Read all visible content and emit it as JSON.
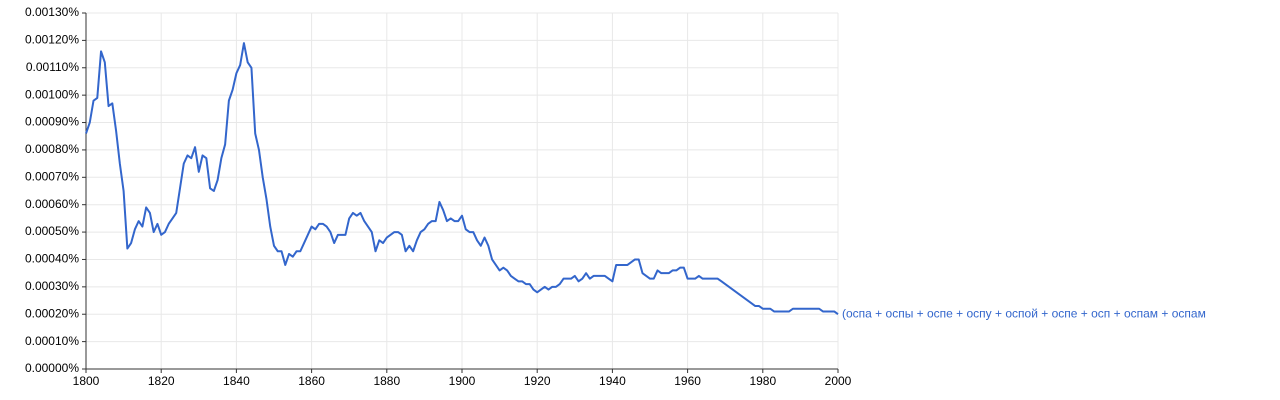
{
  "chart_data": {
    "type": "line",
    "x": [
      1800,
      1801,
      1802,
      1803,
      1804,
      1805,
      1806,
      1807,
      1808,
      1809,
      1810,
      1811,
      1812,
      1813,
      1814,
      1815,
      1816,
      1817,
      1818,
      1819,
      1820,
      1821,
      1822,
      1823,
      1824,
      1825,
      1826,
      1827,
      1828,
      1829,
      1830,
      1831,
      1832,
      1833,
      1834,
      1835,
      1836,
      1837,
      1838,
      1839,
      1840,
      1841,
      1842,
      1843,
      1844,
      1845,
      1846,
      1847,
      1848,
      1849,
      1850,
      1851,
      1852,
      1853,
      1854,
      1855,
      1856,
      1857,
      1858,
      1859,
      1860,
      1861,
      1862,
      1863,
      1864,
      1865,
      1866,
      1867,
      1868,
      1869,
      1870,
      1871,
      1872,
      1873,
      1874,
      1875,
      1876,
      1877,
      1878,
      1879,
      1880,
      1881,
      1882,
      1883,
      1884,
      1885,
      1886,
      1887,
      1888,
      1889,
      1890,
      1891,
      1892,
      1893,
      1894,
      1895,
      1896,
      1897,
      1898,
      1899,
      1900,
      1901,
      1902,
      1903,
      1904,
      1905,
      1906,
      1907,
      1908,
      1909,
      1910,
      1911,
      1912,
      1913,
      1914,
      1915,
      1916,
      1917,
      1918,
      1919,
      1920,
      1921,
      1922,
      1923,
      1924,
      1925,
      1926,
      1927,
      1928,
      1929,
      1930,
      1931,
      1932,
      1933,
      1934,
      1935,
      1936,
      1937,
      1938,
      1939,
      1940,
      1941,
      1942,
      1943,
      1944,
      1945,
      1946,
      1947,
      1948,
      1949,
      1950,
      1951,
      1952,
      1953,
      1954,
      1955,
      1956,
      1957,
      1958,
      1959,
      1960,
      1961,
      1962,
      1963,
      1964,
      1965,
      1966,
      1967,
      1968,
      1969,
      1970,
      1971,
      1972,
      1973,
      1974,
      1975,
      1976,
      1977,
      1978,
      1979,
      1980,
      1981,
      1982,
      1983,
      1984,
      1985,
      1986,
      1987,
      1988,
      1989,
      1990,
      1991,
      1992,
      1993,
      1994,
      1995,
      1996,
      1997,
      1998,
      1999,
      2000
    ],
    "series": [
      {
        "name": "(оспа + оспы + оспе + оспу + оспой + оспе + осп + оспам + оспам",
        "color": "#3366cc",
        "values": [
          0.00086,
          0.0009,
          0.00098,
          0.00099,
          0.00116,
          0.00112,
          0.00096,
          0.00097,
          0.00087,
          0.00075,
          0.00065,
          0.00044,
          0.00046,
          0.00051,
          0.00054,
          0.00052,
          0.00059,
          0.00057,
          0.0005,
          0.00053,
          0.00049,
          0.0005,
          0.00053,
          0.00055,
          0.00057,
          0.00066,
          0.00075,
          0.00078,
          0.00077,
          0.00081,
          0.00072,
          0.00078,
          0.00077,
          0.00066,
          0.00065,
          0.00069,
          0.00077,
          0.00082,
          0.00098,
          0.00102,
          0.00108,
          0.00111,
          0.00119,
          0.00112,
          0.0011,
          0.00086,
          0.0008,
          0.0007,
          0.00062,
          0.00052,
          0.00045,
          0.00043,
          0.00043,
          0.00038,
          0.00042,
          0.00041,
          0.00043,
          0.00043,
          0.00046,
          0.00049,
          0.00052,
          0.00051,
          0.00053,
          0.00053,
          0.00052,
          0.0005,
          0.00046,
          0.00049,
          0.00049,
          0.00049,
          0.00055,
          0.00057,
          0.00056,
          0.00057,
          0.00054,
          0.00052,
          0.0005,
          0.00043,
          0.00047,
          0.00046,
          0.00048,
          0.00049,
          0.0005,
          0.0005,
          0.00049,
          0.00043,
          0.00045,
          0.00043,
          0.00047,
          0.0005,
          0.00051,
          0.00053,
          0.00054,
          0.00054,
          0.00061,
          0.00058,
          0.00054,
          0.00055,
          0.00054,
          0.00054,
          0.00056,
          0.00051,
          0.0005,
          0.0005,
          0.00047,
          0.00045,
          0.00048,
          0.00045,
          0.0004,
          0.00038,
          0.00036,
          0.00037,
          0.00036,
          0.00034,
          0.00033,
          0.00032,
          0.00032,
          0.00031,
          0.00031,
          0.00029,
          0.00028,
          0.00029,
          0.0003,
          0.00029,
          0.0003,
          0.0003,
          0.00031,
          0.00033,
          0.00033,
          0.00033,
          0.00034,
          0.00032,
          0.00033,
          0.00035,
          0.00033,
          0.00034,
          0.00034,
          0.00034,
          0.00034,
          0.00033,
          0.00032,
          0.00038,
          0.00038,
          0.00038,
          0.00038,
          0.00039,
          0.0004,
          0.0004,
          0.00035,
          0.00034,
          0.00033,
          0.00033,
          0.00036,
          0.00035,
          0.00035,
          0.00035,
          0.00036,
          0.00036,
          0.00037,
          0.00037,
          0.00033,
          0.00033,
          0.00033,
          0.00034,
          0.00033,
          0.00033,
          0.00033,
          0.00033,
          0.00033,
          0.00032,
          0.00031,
          0.0003,
          0.00029,
          0.00028,
          0.00027,
          0.00026,
          0.00025,
          0.00024,
          0.00023,
          0.00023,
          0.00022,
          0.00022,
          0.00022,
          0.00021,
          0.00021,
          0.00021,
          0.00021,
          0.00021,
          0.00022,
          0.00022,
          0.00022,
          0.00022,
          0.00022,
          0.00022,
          0.00022,
          0.00022,
          0.00021,
          0.00021,
          0.00021,
          0.00021,
          0.0002
        ]
      }
    ],
    "xlim": [
      1800,
      2000
    ],
    "xticks": [
      1800,
      1820,
      1840,
      1860,
      1880,
      1900,
      1920,
      1940,
      1960,
      1980,
      2000
    ],
    "ylim": [
      0,
      0.0013
    ],
    "yticks": [
      {
        "value": 0,
        "label": "0.00000%"
      },
      {
        "value": 0.0001,
        "label": "0.00010%"
      },
      {
        "value": 0.0002,
        "label": "0.00020%"
      },
      {
        "value": 0.0003,
        "label": "0.00030%"
      },
      {
        "value": 0.0004,
        "label": "0.00040%"
      },
      {
        "value": 0.0005,
        "label": "0.00050%"
      },
      {
        "value": 0.0006,
        "label": "0.00060%"
      },
      {
        "value": 0.0007,
        "label": "0.00070%"
      },
      {
        "value": 0.0008,
        "label": "0.00080%"
      },
      {
        "value": 0.0009,
        "label": "0.00090%"
      },
      {
        "value": 0.001,
        "label": "0.00100%"
      },
      {
        "value": 0.0011,
        "label": "0.00110%"
      },
      {
        "value": 0.0012,
        "label": "0.00120%"
      },
      {
        "value": 0.0013,
        "label": "0.00130%"
      }
    ],
    "grid": true
  }
}
